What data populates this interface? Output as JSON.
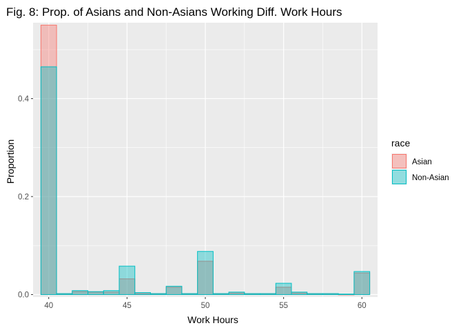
{
  "chart_data": {
    "type": "bar",
    "title": "Fig. 8: Prop. of Asians and Non-Asians Working Diff. Work Hours",
    "xlabel": "Work Hours",
    "ylabel": "Proportion",
    "xlim": [
      39,
      61
    ],
    "ylim": [
      -0.005,
      0.555
    ],
    "xticks": [
      40,
      45,
      50,
      55,
      60
    ],
    "xtick_labels": [
      "40",
      "45",
      "50",
      "55",
      "60"
    ],
    "yticks": [
      0.0,
      0.2,
      0.4
    ],
    "ytick_labels": [
      "0.0",
      "0.2",
      "0.4"
    ],
    "grid": true,
    "legend_title": "race",
    "legend_position": "right",
    "bin_width": 1,
    "x": [
      40,
      41,
      42,
      43,
      44,
      45,
      46,
      47,
      48,
      49,
      50,
      51,
      52,
      53,
      54,
      55,
      56,
      57,
      58,
      59,
      60
    ],
    "series": [
      {
        "name": "Asian",
        "color": "#F8766D",
        "values": [
          0.55,
          0.001,
          0.006,
          0.005,
          0.005,
          0.032,
          0.002,
          0.001,
          0.015,
          0.001,
          0.068,
          0.001,
          0.003,
          0.001,
          0.001,
          0.015,
          0.003,
          0.001,
          0.001,
          0.0,
          0.044
        ]
      },
      {
        "name": "Non-Asian",
        "color": "#00BFC4",
        "values": [
          0.465,
          0.002,
          0.008,
          0.006,
          0.008,
          0.058,
          0.004,
          0.002,
          0.017,
          0.002,
          0.088,
          0.002,
          0.005,
          0.002,
          0.002,
          0.023,
          0.005,
          0.002,
          0.002,
          0.001,
          0.047
        ]
      }
    ]
  }
}
